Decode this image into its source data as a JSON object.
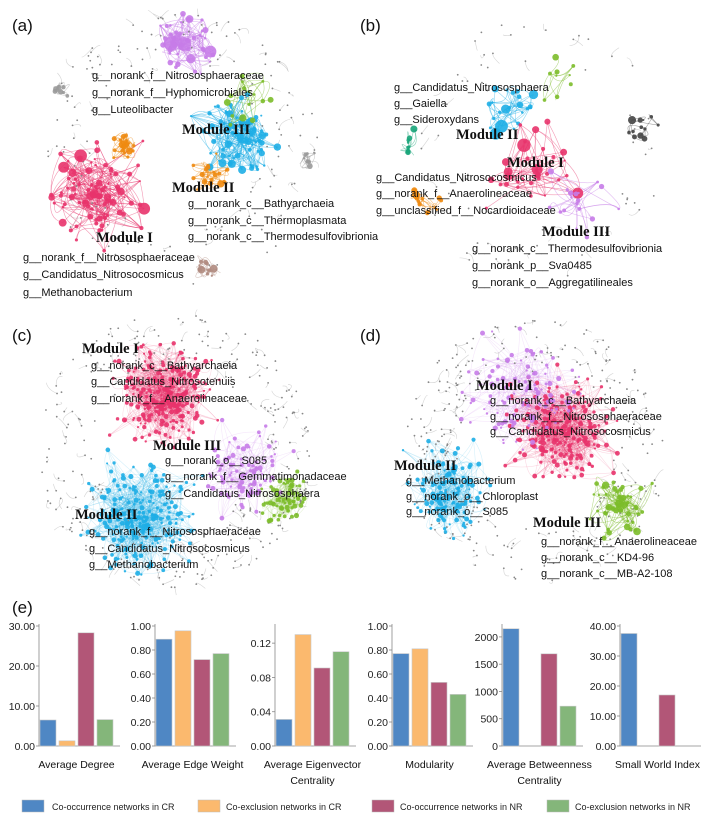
{
  "panels": {
    "a": {
      "label": "(a)",
      "modules": [
        "Module III",
        "Module II",
        "Module I"
      ],
      "taxa_top": [
        "g__norank_f__Nitrososphaeraceae",
        "g__norank_f__Hyphomicrobiales",
        "g__Luteolibacter"
      ],
      "taxa_mid": [
        "g__norank_c__Bathyarchaeia",
        "g__norank_c__Thermoplasmata",
        "g__norank_c__Thermodesulfovibrionia"
      ],
      "taxa_bot": [
        "g__norank_f__Nitrososphaeraceae",
        "g__Candidatus_Nitrosocosmicus",
        "g__Methanobacterium"
      ]
    },
    "b": {
      "label": "(b)",
      "modules": [
        "Module II",
        "Module I",
        "Module III"
      ],
      "taxa_top": [
        "g__Candidatus_Nitrososphaera",
        "g__Gaiella",
        "g__Sideroxydans"
      ],
      "taxa_mid": [
        "g__Candidatus_Nitrosocosmicus",
        "g__norank_f__Anaerolineaceae",
        "g__unclassified_f__Nocardioidaceae"
      ],
      "taxa_bot": [
        "g__norank_c__Thermodesulfovibrionia",
        "g__norank_p__Sva0485",
        "g__norank_o__Aggregatilineales"
      ]
    },
    "c": {
      "label": "(c)",
      "modules": [
        "Module I",
        "Module III",
        "Module II"
      ],
      "taxa_top": [
        "g__norank_c__Bathyarchaeia",
        "g__Candidatus_Nitrosotenuis",
        "g__norank_f__Anaerolineaceae"
      ],
      "taxa_mid": [
        "g__norank_o__S085",
        "g__norank_f__Gemmatimonadaceae",
        "g__Candidatus_Nitrososphaera"
      ],
      "taxa_bot": [
        "g__norank_f__Nitrososphaeraceae",
        "g__Candidatus_Nitrosocosmicus",
        "g__Methanobacterium"
      ]
    },
    "d": {
      "label": "(d)",
      "modules": [
        "Module I",
        "Module II",
        "Module III"
      ],
      "taxa_top": [
        "g__norank_c__Bathyarchaeia",
        "g__norank_f__Nitrososphaeraceae",
        "g__Candidatus_Nitrosocosmicus"
      ],
      "taxa_mid": [
        "g__Methanobacterium",
        "g__norank_o__Chloroplast",
        "g__norank_o__S085"
      ],
      "taxa_bot": [
        "g__norank_f__Anaerolineaceae",
        "g__norank_c__KD4-96",
        "g__norank_c__MB-A2-108"
      ]
    },
    "e": {
      "label": "(e)"
    }
  },
  "colors": {
    "cr_cooccurrence": "#4f87c4",
    "cr_coexclusion": "#fbb96e",
    "nr_cooccurrence": "#b25677",
    "nr_coexclusion": "#84b67a",
    "module_pink": "#e8336b",
    "module_blue": "#1eaee6",
    "module_purple": "#c67ce8",
    "module_orange": "#ee8a10",
    "module_green": "#7cbc2a",
    "module_teal": "#1aa57a",
    "module_gray": "#9a9a9a",
    "module_brown": "#b08b80",
    "module_dark": "#444444"
  },
  "legend": [
    "Co-occurrence networks in CR",
    "Co-exclusion networks in CR",
    "Co-occurrence networks in NR",
    "Co-exclusion networks in NR"
  ],
  "chart_data": [
    {
      "type": "bar",
      "title": [
        "Average Degree"
      ],
      "ylim": [
        0,
        30
      ],
      "ticks": [
        "0.00",
        "10.00",
        "20.00",
        "30.00"
      ],
      "tick_values": [
        0,
        10,
        20,
        30
      ],
      "series": [
        {
          "name": "Co-occurrence networks in CR",
          "value": 6.5
        },
        {
          "name": "Co-exclusion networks in CR",
          "value": 1.3
        },
        {
          "name": "Co-occurrence networks in NR",
          "value": 28.3
        },
        {
          "name": "Co-exclusion networks in NR",
          "value": 6.6
        }
      ]
    },
    {
      "type": "bar",
      "title": [
        "Average Edge Weight"
      ],
      "ylim": [
        0,
        1
      ],
      "ticks": [
        "0.00",
        "0.20",
        "0.40",
        "0.60",
        "0.80",
        "1.00"
      ],
      "tick_values": [
        0,
        0.2,
        0.4,
        0.6,
        0.8,
        1.0
      ],
      "series": [
        {
          "name": "Co-occurrence networks in CR",
          "value": 0.89
        },
        {
          "name": "Co-exclusion networks in CR",
          "value": 0.96
        },
        {
          "name": "Co-occurrence networks in NR",
          "value": 0.72
        },
        {
          "name": "Co-exclusion networks in NR",
          "value": 0.77
        }
      ]
    },
    {
      "type": "bar",
      "title": [
        "Average Eigenvector",
        "Centrality"
      ],
      "ylim": [
        0,
        0.14
      ],
      "ticks": [
        "0.00",
        "0.04",
        "0.08",
        "0.12"
      ],
      "tick_values": [
        0,
        0.04,
        0.08,
        0.12
      ],
      "series": [
        {
          "name": "Co-occurrence networks in CR",
          "value": 0.031
        },
        {
          "name": "Co-exclusion networks in CR",
          "value": 0.13
        },
        {
          "name": "Co-occurrence networks in NR",
          "value": 0.091
        },
        {
          "name": "Co-exclusion networks in NR",
          "value": 0.11
        }
      ]
    },
    {
      "type": "bar",
      "title": [
        "Modularity"
      ],
      "ylim": [
        0,
        1
      ],
      "ticks": [
        "0.00",
        "0.20",
        "0.40",
        "0.60",
        "0.80",
        "1.00"
      ],
      "tick_values": [
        0,
        0.2,
        0.4,
        0.6,
        0.8,
        1.0
      ],
      "series": [
        {
          "name": "Co-occurrence networks in CR",
          "value": 0.77
        },
        {
          "name": "Co-exclusion networks in CR",
          "value": 0.81
        },
        {
          "name": "Co-occurrence networks in NR",
          "value": 0.53
        },
        {
          "name": "Co-exclusion networks in NR",
          "value": 0.43
        }
      ]
    },
    {
      "type": "bar",
      "title": [
        "Average Betweenness",
        "Centrality"
      ],
      "ylim": [
        0,
        2200
      ],
      "ticks": [
        "0",
        "500",
        "1000",
        "1500",
        "2000"
      ],
      "tick_values": [
        0,
        500,
        1000,
        1500,
        2000
      ],
      "series": [
        {
          "name": "Co-occurrence networks in CR",
          "value": 2150
        },
        {
          "name": "Co-exclusion networks in CR",
          "value": 0
        },
        {
          "name": "Co-occurrence networks in NR",
          "value": 1690
        },
        {
          "name": "Co-exclusion networks in NR",
          "value": 730
        }
      ]
    },
    {
      "type": "bar",
      "title": [
        "Small World Index"
      ],
      "ylim": [
        0,
        40
      ],
      "ticks": [
        "0.00",
        "10.00",
        "20.00",
        "30.00",
        "40.00"
      ],
      "tick_values": [
        0,
        10,
        20,
        30,
        40
      ],
      "series": [
        {
          "name": "Co-occurrence networks in CR",
          "value": 37.5
        },
        {
          "name": "Co-exclusion networks in CR",
          "value": 0
        },
        {
          "name": "Co-occurrence networks in NR",
          "value": 17
        },
        {
          "name": "Co-exclusion networks in NR",
          "value": 0
        }
      ]
    }
  ]
}
